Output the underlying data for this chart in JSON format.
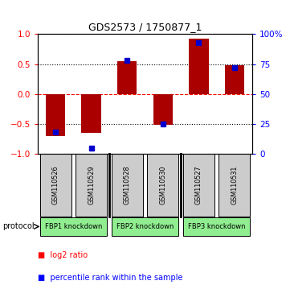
{
  "title": "GDS2573 / 1750877_1",
  "samples": [
    "GSM110526",
    "GSM110529",
    "GSM110528",
    "GSM110530",
    "GSM110527",
    "GSM110531"
  ],
  "log2_ratio": [
    -0.7,
    -0.65,
    0.55,
    -0.52,
    0.92,
    0.48
  ],
  "percentile_rank": [
    0.18,
    0.05,
    0.78,
    0.25,
    0.93,
    0.72
  ],
  "bar_color": "#aa0000",
  "blue_color": "#0000cc",
  "ylim_left": [
    -1.0,
    1.0
  ],
  "yticks_left": [
    -1.0,
    -0.5,
    0.0,
    0.5,
    1.0
  ],
  "yticks_right": [
    0,
    25,
    50,
    75,
    100
  ],
  "bar_width": 0.55,
  "blue_marker_size": 5,
  "sample_box_color": "#cccccc",
  "green_color": "#90ee90",
  "proto_groups": [
    [
      0,
      1,
      "FBP1 knockdown"
    ],
    [
      2,
      3,
      "FBP2 knockdown"
    ],
    [
      4,
      5,
      "FBP3 knockdown"
    ]
  ]
}
